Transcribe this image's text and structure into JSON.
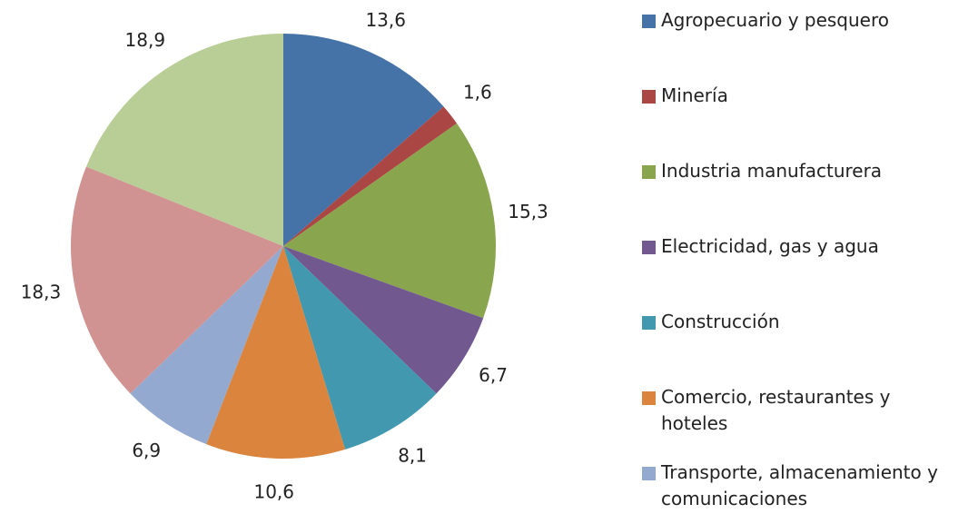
{
  "chart_data": {
    "type": "pie",
    "categories": [
      "Agropecuario y pesquero",
      "Minería",
      "Industria manufacturera",
      "Electricidad, gas y agua",
      "Construcción",
      "Comercio, restaurantes y hoteles",
      "Transporte, almacenamiento y comunicaciones",
      null,
      null
    ],
    "values": [
      13.6,
      1.6,
      15.3,
      6.7,
      8.1,
      10.6,
      6.9,
      18.3,
      18.9
    ],
    "value_labels": [
      "13,6",
      "1,6",
      "15,3",
      "6,7",
      "8,1",
      "10,6",
      "6,9",
      "18,3",
      "18,9"
    ],
    "colors": [
      "#4572a7",
      "#aa4643",
      "#89a54e",
      "#71588f",
      "#4198af",
      "#db843d",
      "#93a9cf",
      "#d19392",
      "#b9cd96"
    ],
    "legend": "right"
  }
}
